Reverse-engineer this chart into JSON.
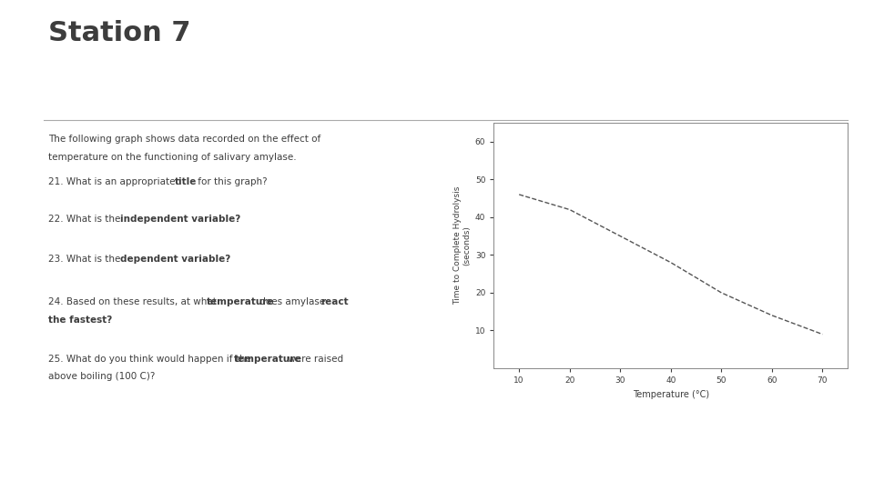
{
  "title": "Station 7",
  "bg_color": "#ffffff",
  "orange_bar_color": "#c85d1a",
  "title_color": "#3d3d3d",
  "text_color": "#3d3d3d",
  "separator_color": "#aaaaaa",
  "desc_line1": "The following graph shows data recorded on the effect of",
  "desc_line2": "temperature on the functioning of salivary amylase.",
  "q21": "21. What is an appropriate title for this graph?",
  "q22": "22. What is the independent variable?",
  "q23": "23. What is the dependent variable?",
  "q24_line1": "24. Based on these results, at what temperature does amylase react",
  "q24_line2": "the fastest?",
  "q25_line1": "25. What do you think would happen if the temperature were raised",
  "q25_line2": "above boiling (100 C)?",
  "graph_xlabel": "Temperature (°C)",
  "graph_ylabel": "Time to Complete Hydrolysis\n(seconds)",
  "x_data": [
    10,
    20,
    30,
    40,
    50,
    60,
    70
  ],
  "y_data": [
    46,
    42,
    35,
    28,
    20,
    14,
    9
  ],
  "x_ticks": [
    10,
    20,
    30,
    40,
    50,
    60,
    70
  ],
  "y_ticks": [
    10,
    20,
    30,
    40,
    50,
    60
  ],
  "xlim": [
    5,
    75
  ],
  "ylim": [
    0,
    65
  ]
}
